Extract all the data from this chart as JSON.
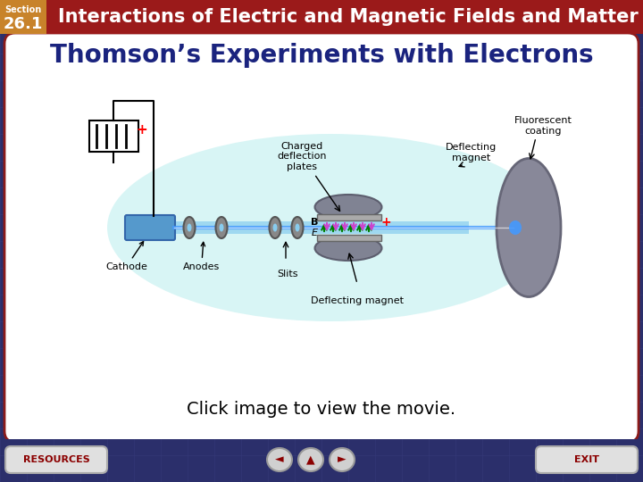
{
  "header_bg_color": "#9B1A1A",
  "header_text": "Interactions of Electric and Magnetic Fields and Matter",
  "header_text_color": "#FFFFFF",
  "section_label": "Section",
  "section_number": "26.1",
  "section_bg_color": "#C8832A",
  "section_text_color": "#FFFFFF",
  "main_bg_color": "#2B2F6B",
  "content_bg_color": "#FFFFFF",
  "title_text": "Thomson’s Experiments with Electrons",
  "title_color": "#1A237E",
  "subtitle_text": "Click image to view the movie.",
  "subtitle_color": "#000000",
  "footer_bg_color": "#2B2F6B",
  "resources_text": "RESOURCES",
  "resources_text_color": "#8B0000",
  "exit_text": "EXIT",
  "exit_text_color": "#8B0000",
  "grid_color": "#3A3F80"
}
